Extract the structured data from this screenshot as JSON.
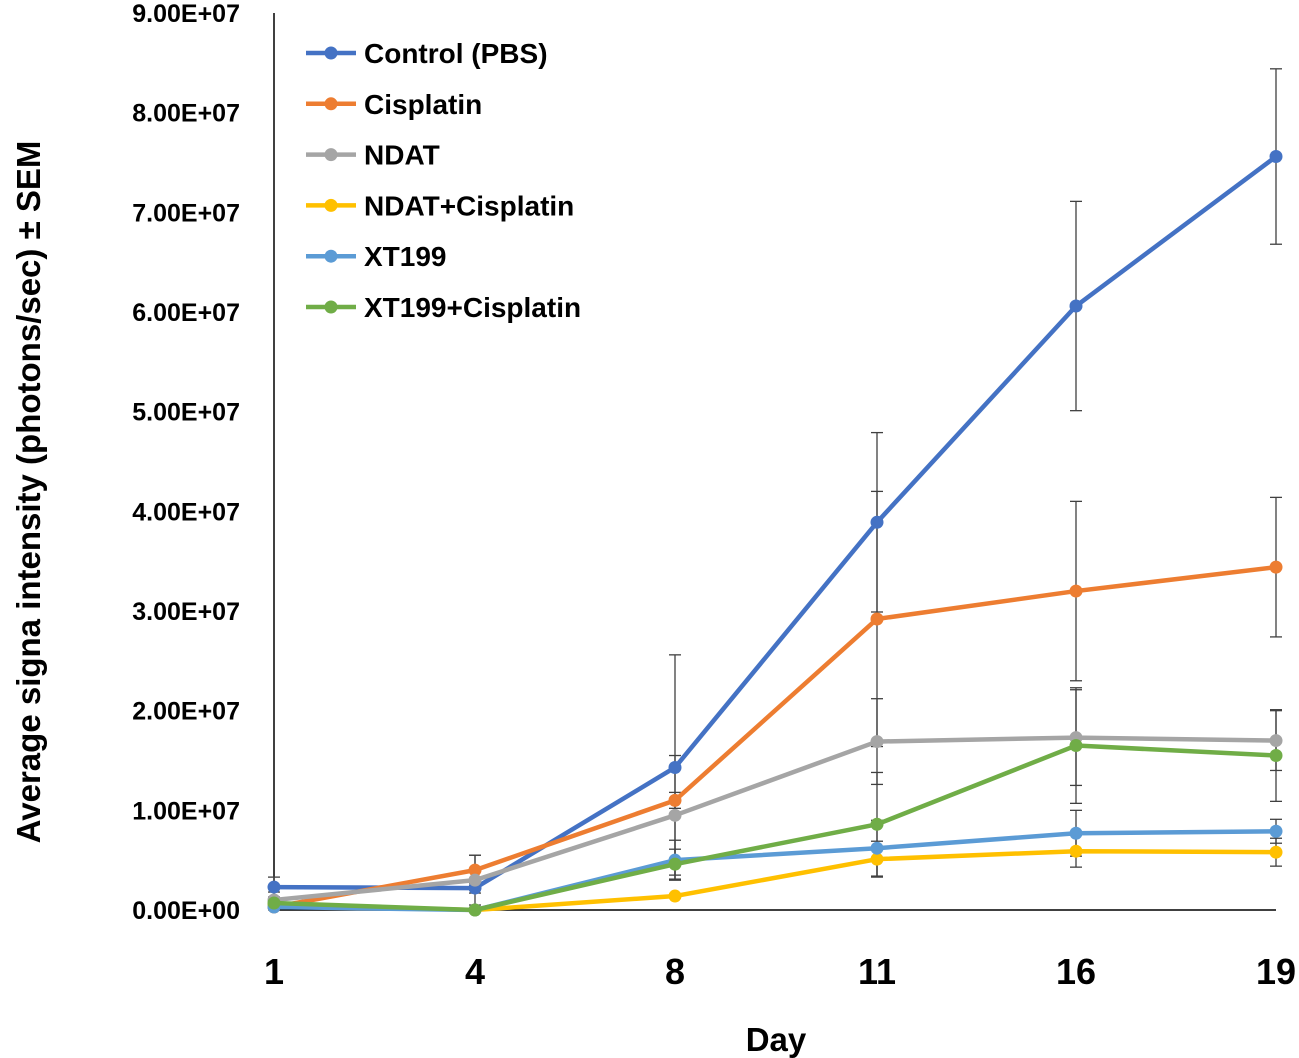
{
  "chart_data": {
    "type": "line",
    "title": "",
    "xlabel": "Day",
    "ylabel": "Average signa intensity (photons/sec) ± SEM",
    "categories": [
      "1",
      "4",
      "8",
      "11",
      "16",
      "19"
    ],
    "ylim": [
      0,
      90000000
    ],
    "yticks": [
      0,
      10000000,
      20000000,
      30000000,
      40000000,
      50000000,
      60000000,
      70000000,
      80000000,
      90000000
    ],
    "ytick_labels": [
      "0.00E+00",
      "1.00E+07",
      "2.00E+07",
      "3.00E+07",
      "4.00E+07",
      "5.00E+07",
      "6.00E+07",
      "7.00E+07",
      "8.00E+07",
      "9.00E+07"
    ],
    "grid": false,
    "legend_position": "top-left",
    "series": [
      {
        "name": "Control (PBS)",
        "color": "#4472C4",
        "values": [
          2300000,
          2200000,
          14300000,
          38900000,
          60600000,
          75600000
        ],
        "errors": [
          1000000,
          500000,
          11300000,
          9000000,
          10500000,
          8800000
        ]
      },
      {
        "name": "Cisplatin",
        "color": "#ED7D31",
        "values": [
          300000,
          4000000,
          11000000,
          29200000,
          32000000,
          34400000
        ],
        "errors": [
          300000,
          1500000,
          800000,
          12800000,
          9000000,
          7000000
        ]
      },
      {
        "name": "NDAT",
        "color": "#A5A5A5",
        "values": [
          1000000,
          3000000,
          9500000,
          16900000,
          17300000,
          17000000
        ],
        "errors": [
          800000,
          2500000,
          6000000,
          4300000,
          4800000,
          3000000
        ]
      },
      {
        "name": "NDAT+Cisplatin",
        "color": "#FFC000",
        "values": [
          500000,
          0,
          1400000,
          5100000,
          5900000,
          5800000
        ],
        "errors": [
          300000,
          0,
          200000,
          1800000,
          1600000,
          1400000
        ]
      },
      {
        "name": "XT199",
        "color": "#5B9BD5",
        "values": [
          300000,
          0,
          5000000,
          6200000,
          7700000,
          7900000
        ],
        "errors": [
          200000,
          0,
          2000000,
          2800000,
          2300000,
          1200000
        ]
      },
      {
        "name": "XT199+Cisplatin",
        "color": "#70AD47",
        "values": [
          700000,
          0,
          4600000,
          8600000,
          16500000,
          15500000
        ],
        "errors": [
          300000,
          0,
          1500000,
          5200000,
          5800000,
          4600000
        ]
      }
    ]
  }
}
